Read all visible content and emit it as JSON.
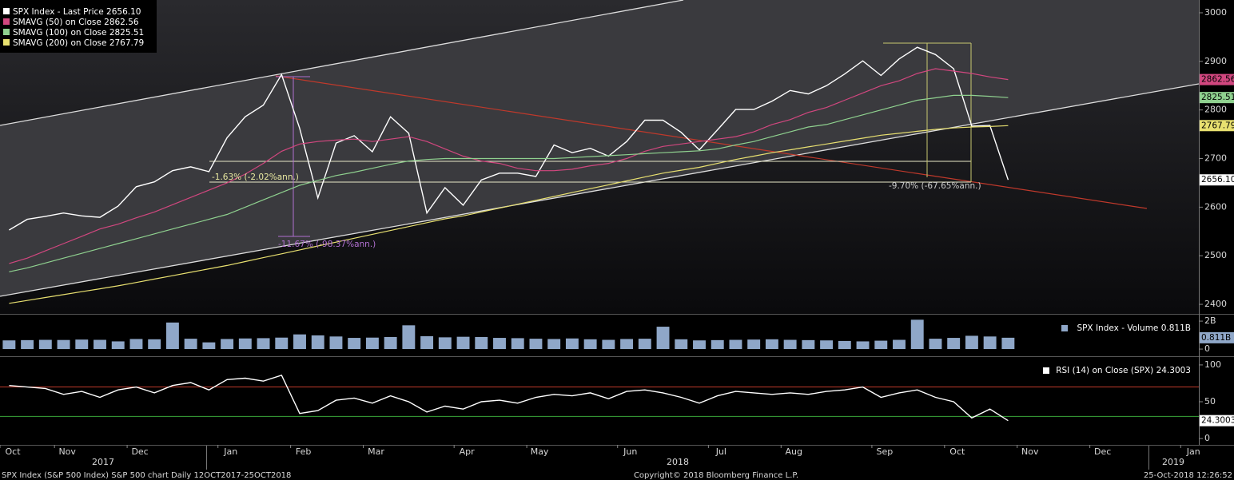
{
  "chart_data": [
    {
      "type": "line",
      "categories": [
        "Oct",
        null,
        null,
        "Nov",
        null,
        null,
        null,
        "Dec",
        null,
        null,
        null,
        null,
        "Jan",
        null,
        null,
        null,
        "Feb",
        null,
        null,
        null,
        "Mar",
        null,
        null,
        null,
        null,
        "Apr",
        null,
        null,
        null,
        "May",
        null,
        null,
        null,
        null,
        "Jun",
        null,
        null,
        null,
        null,
        "Jul",
        null,
        null,
        null,
        "Aug",
        null,
        null,
        null,
        null,
        "Sep",
        null,
        null,
        null,
        "Oct",
        null,
        null,
        null,
        "Nov",
        null,
        null,
        null,
        "Dec",
        null,
        null,
        null,
        null,
        "Jan"
      ],
      "series": [
        {
          "name": "SPX Index - Last Price 2656.10",
          "color": "#ffffff",
          "last": {
            "value": 2656.1,
            "label": "2656.10"
          },
          "values": [
            2553,
            2575,
            2581,
            2588,
            2582,
            2579,
            2602,
            2642,
            2652,
            2675,
            2683,
            2673,
            2743,
            2786,
            2810,
            2873,
            2762,
            2619,
            2732,
            2747,
            2714,
            2786,
            2752,
            2588,
            2640,
            2604,
            2656,
            2670,
            2670,
            2663,
            2728,
            2712,
            2721,
            2705,
            2735,
            2779,
            2779,
            2754,
            2718,
            2759,
            2801,
            2801,
            2818,
            2840,
            2833,
            2850,
            2874,
            2901,
            2871,
            2905,
            2929,
            2914,
            2885,
            2767,
            2768,
            2656.1,
            null,
            null,
            null,
            null,
            null,
            null,
            null,
            null,
            null,
            null
          ]
        },
        {
          "name": "SMAVG (50)  on Close  2862.56",
          "color": "#d1477f",
          "last": 2862.56,
          "values": [
            2484,
            2495,
            2510,
            2525,
            2540,
            2555,
            2565,
            2578,
            2590,
            2605,
            2620,
            2635,
            2650,
            2668,
            2690,
            2715,
            2730,
            2735,
            2738,
            2740,
            2735,
            2740,
            2745,
            2735,
            2720,
            2705,
            2695,
            2690,
            2680,
            2675,
            2675,
            2678,
            2685,
            2690,
            2700,
            2715,
            2725,
            2730,
            2735,
            2740,
            2745,
            2755,
            2770,
            2780,
            2795,
            2805,
            2820,
            2835,
            2850,
            2860,
            2875,
            2885,
            2880,
            2875,
            2868,
            2862.56,
            null,
            null,
            null,
            null,
            null,
            null,
            null,
            null,
            null,
            null
          ]
        },
        {
          "name": "SMAVG (100)  on Close  2825.51",
          "color": "#8fd18f",
          "last": 2825.51,
          "values": [
            2467,
            2475,
            2485,
            2495,
            2505,
            2515,
            2525,
            2535,
            2545,
            2555,
            2565,
            2575,
            2585,
            2600,
            2615,
            2630,
            2645,
            2655,
            2665,
            2672,
            2680,
            2688,
            2695,
            2698,
            2700,
            2700,
            2700,
            2700,
            2700,
            2700,
            2700,
            2702,
            2704,
            2706,
            2708,
            2710,
            2712,
            2714,
            2716,
            2720,
            2728,
            2735,
            2745,
            2755,
            2765,
            2770,
            2780,
            2790,
            2800,
            2810,
            2820,
            2825,
            2830,
            2830,
            2828,
            2825.51,
            null,
            null,
            null,
            null,
            null,
            null,
            null,
            null,
            null,
            null
          ]
        },
        {
          "name": "SMAVG (200)  on Close  2767.79",
          "color": "#e8e070",
          "last": 2767.79,
          "values": [
            2402,
            2408,
            2414,
            2420,
            2426,
            2432,
            2438,
            2445,
            2452,
            2459,
            2466,
            2473,
            2480,
            2488,
            2496,
            2504,
            2512,
            2520,
            2528,
            2536,
            2544,
            2552,
            2560,
            2568,
            2576,
            2582,
            2590,
            2598,
            2606,
            2614,
            2622,
            2630,
            2638,
            2646,
            2654,
            2662,
            2670,
            2676,
            2682,
            2690,
            2698,
            2705,
            2712,
            2718,
            2724,
            2730,
            2736,
            2742,
            2748,
            2752,
            2756,
            2760,
            2763,
            2765,
            2766,
            2767.79,
            null,
            null,
            null,
            null,
            null,
            null,
            null,
            null,
            null,
            null
          ]
        }
      ],
      "ylim": [
        2382,
        3023
      ],
      "yticks": [
        2400,
        2500,
        2600,
        2700,
        2800,
        2900,
        3000
      ],
      "annotations": [
        "-1.63% (-2.02%ann.)",
        "-11.67% (-98.37%ann.)",
        "-9.70% (-67.65%ann.)"
      ]
    },
    {
      "type": "bar",
      "series": [
        {
          "name": "SPX Index - Volume 0.811B",
          "color": "#8fa7c8",
          "last": {
            "value": 0.811,
            "label": "0.811B"
          },
          "values": [
            0.62,
            0.64,
            0.66,
            0.65,
            0.68,
            0.66,
            0.55,
            0.72,
            0.7,
            1.9,
            0.74,
            0.48,
            0.72,
            0.76,
            0.78,
            0.82,
            1.05,
            0.98,
            0.9,
            0.8,
            0.82,
            0.86,
            1.7,
            0.92,
            0.84,
            0.88,
            0.86,
            0.8,
            0.78,
            0.74,
            0.72,
            0.76,
            0.7,
            0.66,
            0.72,
            0.74,
            1.6,
            0.7,
            0.62,
            0.64,
            0.66,
            0.68,
            0.7,
            0.66,
            0.64,
            0.62,
            0.58,
            0.55,
            0.6,
            0.66,
            2.1,
            0.74,
            0.8,
            0.95,
            0.9,
            0.811
          ]
        }
      ],
      "ylim": [
        -0.34,
        2.29
      ],
      "yticks": [
        0,
        {
          "value": 2,
          "label": "2B"
        }
      ]
    },
    {
      "type": "line",
      "series": [
        {
          "name": "RSI (14)  on Close (SPX) 24.3003",
          "color": "#ffffff",
          "last": 24.3003,
          "values": [
            72,
            70,
            68,
            60,
            64,
            56,
            66,
            70,
            62,
            72,
            76,
            66,
            80,
            82,
            78,
            86,
            34,
            38,
            52,
            55,
            48,
            58,
            50,
            36,
            44,
            40,
            50,
            52,
            48,
            56,
            60,
            58,
            62,
            54,
            64,
            66,
            62,
            56,
            48,
            58,
            64,
            62,
            60,
            62,
            60,
            64,
            66,
            70,
            56,
            62,
            66,
            56,
            50,
            28,
            40,
            24.3003
          ]
        }
      ],
      "ylim": [
        -8.6,
        107.5
      ],
      "yticks": [
        0,
        50,
        100
      ],
      "hlines": [
        {
          "value": 70,
          "color": "#c0392b"
        },
        {
          "value": 30,
          "color": "#3aa63a"
        }
      ]
    }
  ],
  "x_axis": {
    "years": [
      "2017",
      "2018",
      "2019"
    ]
  },
  "footer": {
    "left": "SPX Index (S&P 500 Index) S&P 500 chart  Daily 12OCT2017-25OCT2018",
    "center": "Copyright© 2018 Bloomberg Finance L.P.",
    "right": "25-Oct-2018 12:26:52"
  }
}
